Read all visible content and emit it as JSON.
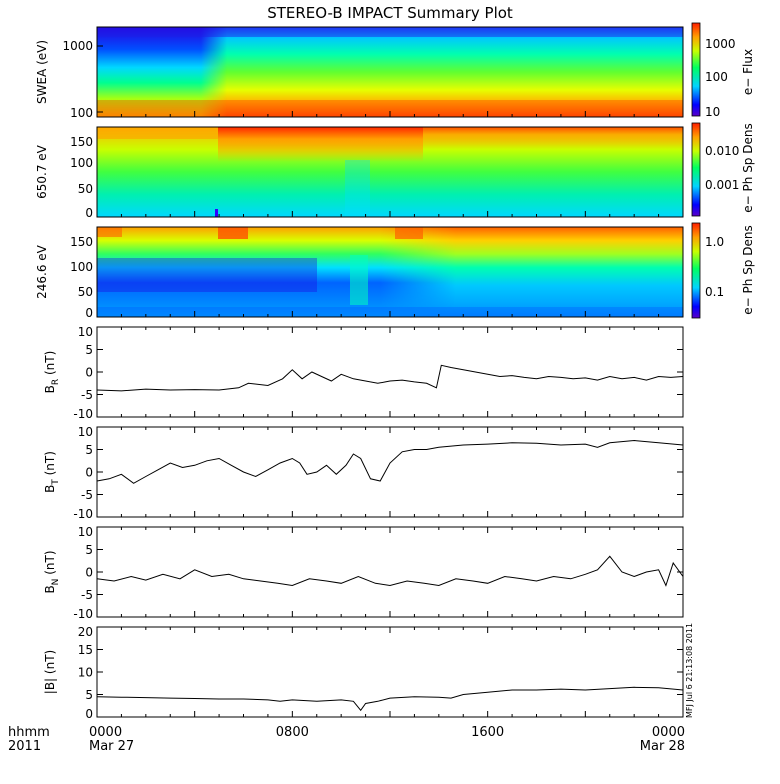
{
  "title": "STEREO-B IMPACT Summary Plot",
  "side_stamp": "MFJ Jul 6 21:13:08 2011",
  "time_axis": {
    "label_row1": "hhmm",
    "label_row2": "2011",
    "ticks": [
      {
        "hour": 0,
        "label": "0000",
        "date": "Mar 27"
      },
      {
        "hour": 8,
        "label": "0800",
        "date": ""
      },
      {
        "hour": 16,
        "label": "1600",
        "date": ""
      },
      {
        "hour": 24,
        "label": "0000",
        "date": "Mar 28"
      }
    ]
  },
  "spectrograms": [
    {
      "id": "swea",
      "ylabel": "SWEA (eV)",
      "yticks": [
        "1000",
        "100"
      ],
      "cbar_label": "e− Flux",
      "cbar_ticks": [
        "1000",
        "100",
        "10"
      ]
    },
    {
      "id": "pad650",
      "ylabel": "650.7 eV",
      "yticks": [
        "150",
        "100",
        "50",
        "0"
      ],
      "cbar_label": "e− Ph Sp Dens",
      "cbar_ticks": [
        "0.010",
        "0.001"
      ]
    },
    {
      "id": "pad246",
      "ylabel": "246.6 eV",
      "yticks": [
        "150",
        "100",
        "50",
        "0"
      ],
      "cbar_label": "e− Ph Sp Dens",
      "cbar_ticks": [
        "1.0",
        "0.1"
      ]
    }
  ],
  "chart_data": [
    {
      "type": "line",
      "id": "br",
      "ylabel": "B_R (nT)",
      "ylabel_main": "B",
      "ylabel_sub": "R",
      "ylabel_unit": " (nT)",
      "ylim": [
        -10,
        10
      ],
      "yticks": [
        10,
        5,
        0,
        -5,
        -10
      ],
      "x_unit": "hours since 0000 Mar 27",
      "x": [
        0,
        1,
        2,
        3,
        4,
        5,
        5.8,
        6.2,
        7,
        7.6,
        8,
        8.4,
        8.8,
        9.2,
        9.6,
        10,
        10.5,
        11,
        11.5,
        12,
        12.5,
        13,
        13.5,
        13.9,
        14.1,
        14.5,
        15,
        15.5,
        16,
        16.5,
        17,
        17.5,
        18,
        18.5,
        19,
        19.5,
        20,
        20.5,
        21,
        21.5,
        22,
        22.5,
        23,
        23.5,
        24
      ],
      "y": [
        -4,
        -4.2,
        -3.8,
        -4,
        -3.9,
        -4,
        -3.5,
        -2.5,
        -3,
        -1.5,
        0.5,
        -1.5,
        0,
        -1,
        -2,
        -0.5,
        -1.5,
        -2,
        -2.5,
        -2,
        -1.8,
        -2.2,
        -2.5,
        -3.5,
        1.5,
        1,
        0.5,
        0,
        -0.5,
        -1,
        -0.8,
        -1.2,
        -1.5,
        -1,
        -1.2,
        -1.5,
        -1.3,
        -1.8,
        -1,
        -1.5,
        -1.2,
        -1.8,
        -1,
        -1.2,
        -1
      ]
    },
    {
      "type": "line",
      "id": "bt",
      "ylabel": "B_T (nT)",
      "ylabel_main": "B",
      "ylabel_sub": "T",
      "ylabel_unit": " (nT)",
      "ylim": [
        -10,
        10
      ],
      "yticks": [
        10,
        5,
        0,
        -5,
        -10
      ],
      "x_unit": "hours since 0000 Mar 27",
      "x": [
        0,
        0.5,
        1,
        1.5,
        2,
        2.5,
        3,
        3.5,
        4,
        4.5,
        5,
        5.5,
        6,
        6.5,
        7,
        7.5,
        8,
        8.3,
        8.6,
        9,
        9.4,
        9.8,
        10.2,
        10.5,
        10.8,
        11.2,
        11.6,
        12,
        12.5,
        13,
        13.5,
        14,
        15,
        16,
        17,
        18,
        19,
        20,
        20.5,
        21,
        22,
        23,
        24
      ],
      "y": [
        -2,
        -1.5,
        -0.5,
        -2.5,
        -1,
        0.5,
        2,
        1,
        1.5,
        2.5,
        3,
        1.5,
        0,
        -1,
        0.5,
        2,
        3,
        2,
        -0.5,
        0,
        1.5,
        -0.5,
        1.5,
        4,
        3,
        -1.5,
        -2,
        2,
        4.5,
        5,
        5,
        5.5,
        6,
        6.2,
        6.5,
        6.4,
        6,
        6.2,
        5.5,
        6.5,
        7,
        6.5,
        6
      ]
    },
    {
      "type": "line",
      "id": "bn",
      "ylabel": "B_N (nT)",
      "ylabel_main": "B",
      "ylabel_sub": "N",
      "ylabel_unit": " (nT)",
      "ylim": [
        -10,
        10
      ],
      "yticks": [
        10,
        5,
        0,
        -5,
        -10
      ],
      "x_unit": "hours since 0000 Mar 27",
      "x": [
        0,
        0.7,
        1.4,
        2,
        2.7,
        3.4,
        4,
        4.7,
        5.4,
        6,
        6.7,
        7.4,
        8,
        8.7,
        9.4,
        10,
        10.7,
        11.4,
        12,
        12.7,
        13.4,
        14,
        14.7,
        15.4,
        16,
        16.7,
        17.4,
        18,
        18.7,
        19.4,
        20,
        20.5,
        21,
        21.5,
        22,
        22.5,
        23,
        23.3,
        23.6,
        24
      ],
      "y": [
        -1.5,
        -2,
        -1,
        -1.8,
        -0.5,
        -1.5,
        0.5,
        -1,
        -0.5,
        -1.5,
        -2,
        -2.5,
        -3,
        -1.5,
        -2,
        -2.5,
        -1,
        -2.5,
        -3,
        -2,
        -2.5,
        -3,
        -1.5,
        -2,
        -2.5,
        -1,
        -1.5,
        -2,
        -1,
        -1.5,
        -0.5,
        0.5,
        3.5,
        0,
        -1,
        0,
        0.5,
        -3,
        2,
        -1
      ]
    },
    {
      "type": "line",
      "id": "bmag",
      "ylabel": "|B| (nT)",
      "ylabel_main": "|B|",
      "ylabel_sub": "",
      "ylabel_unit": " (nT)",
      "ylim": [
        0,
        20
      ],
      "yticks": [
        20,
        15,
        10,
        5,
        0
      ],
      "x_unit": "hours since 0000 Mar 27",
      "x": [
        0,
        1,
        2,
        3,
        4,
        5,
        6,
        7,
        7.5,
        8,
        9,
        10,
        10.5,
        10.8,
        11,
        11.5,
        12,
        13,
        14,
        14.5,
        15,
        16,
        17,
        18,
        19,
        20,
        21,
        22,
        23,
        24
      ],
      "y": [
        4.5,
        4.4,
        4.3,
        4.2,
        4.1,
        4.0,
        4.0,
        3.8,
        3.5,
        3.8,
        3.5,
        3.8,
        3.5,
        1.5,
        3.0,
        3.5,
        4.2,
        4.5,
        4.4,
        4.2,
        5.0,
        5.5,
        6.0,
        6.0,
        6.2,
        6.0,
        6.3,
        6.6,
        6.5,
        6.0
      ]
    }
  ]
}
